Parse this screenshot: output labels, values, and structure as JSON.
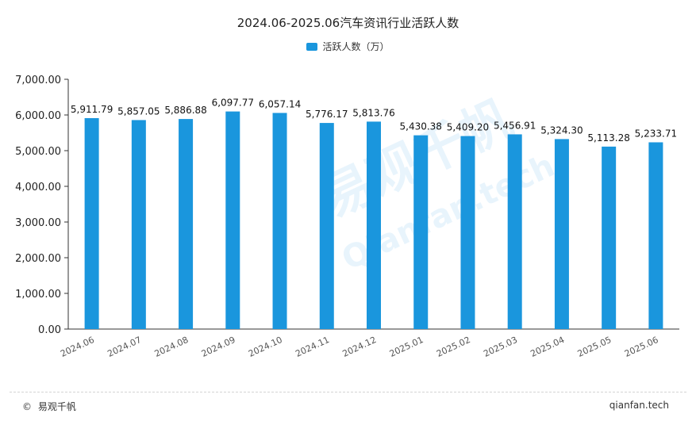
{
  "chart_data": {
    "type": "bar",
    "title": "2024.06-2025.06汽车资讯行业活跃人数",
    "legend": "活跃人数（万）",
    "legend_position": "top-center",
    "categories": [
      "2024.06",
      "2024.07",
      "2024.08",
      "2024.09",
      "2024.10",
      "2024.11",
      "2024.12",
      "2025.01",
      "2025.02",
      "2025.03",
      "2025.04",
      "2025.05",
      "2025.06"
    ],
    "series": [
      {
        "name": "活跃人数（万）",
        "values": [
          5911.79,
          5857.05,
          5886.88,
          6097.77,
          6057.14,
          5776.17,
          5813.76,
          5430.38,
          5409.2,
          5456.91,
          5324.3,
          5113.28,
          5233.71
        ],
        "labels": [
          "5,911.79",
          "5,857.05",
          "5,886.88",
          "6,097.77",
          "6,057.14",
          "5,776.17",
          "5,813.76",
          "5,430.38",
          "5,409.20",
          "5,456.91",
          "5,324.30",
          "5,113.28",
          "5,233.71"
        ]
      }
    ],
    "ylim": [
      0,
      7000
    ],
    "yticks": [
      "0.00",
      "1,000.00",
      "2,000.00",
      "3,000.00",
      "4,000.00",
      "5,000.00",
      "6,000.00",
      "7,000.00"
    ],
    "grid": false,
    "bar_color": "#1a96dd"
  },
  "footer": {
    "copyright_symbol": "©",
    "brand": "易观千帆",
    "site": "qianfan.tech"
  },
  "watermark": {
    "cn": "易观千帆",
    "en": "Qianfan.tech"
  }
}
